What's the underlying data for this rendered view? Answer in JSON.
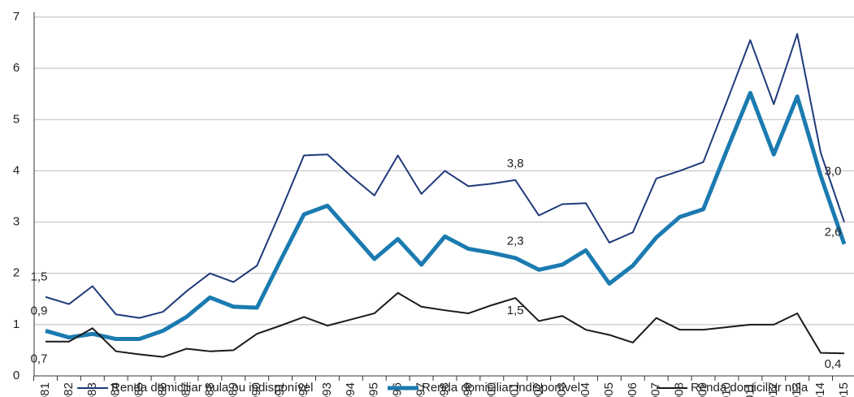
{
  "chart_data": {
    "type": "line",
    "categories": [
      "1981",
      "1982",
      "1983",
      "1984",
      "1985",
      "1986",
      "1987",
      "1988",
      "1989",
      "1990",
      "1991",
      "1992",
      "1993",
      "1994",
      "1995",
      "1996",
      "1997",
      "1998",
      "1999",
      "2000",
      "2001",
      "2002",
      "2003",
      "2004",
      "2005",
      "2006",
      "2007",
      "2008",
      "2009",
      "2010",
      "2011",
      "2012",
      "2013",
      "2014",
      "2015"
    ],
    "series": [
      {
        "name": "Renda domiciliar nula ou indisponível",
        "color": "#1f3a7a",
        "width": 2,
        "values": [
          1.54,
          1.4,
          1.75,
          1.2,
          1.13,
          1.25,
          1.65,
          2.0,
          1.83,
          2.15,
          3.2,
          4.3,
          4.32,
          3.9,
          3.52,
          4.3,
          3.55,
          4.0,
          3.7,
          3.75,
          3.82,
          3.13,
          3.35,
          3.37,
          2.6,
          2.8,
          3.85,
          4.0,
          4.17,
          5.35,
          6.55,
          5.3,
          6.67,
          4.35,
          3.0
        ],
        "value_labels": [
          "1,5",
          null,
          null,
          null,
          null,
          null,
          null,
          null,
          null,
          null,
          null,
          null,
          null,
          null,
          null,
          null,
          null,
          null,
          null,
          null,
          "3,8",
          null,
          null,
          null,
          null,
          null,
          null,
          null,
          null,
          null,
          null,
          null,
          null,
          null,
          "3,0"
        ]
      },
      {
        "name": "Renda domiciliar indisponível",
        "color": "#1b7bb0",
        "width": 5,
        "values": [
          0.88,
          0.75,
          0.82,
          0.72,
          0.72,
          0.88,
          1.15,
          1.53,
          1.35,
          1.33,
          2.25,
          3.15,
          3.32,
          2.8,
          2.28,
          2.67,
          2.17,
          2.72,
          2.48,
          2.4,
          2.3,
          2.07,
          2.17,
          2.45,
          1.8,
          2.15,
          2.7,
          3.1,
          3.25,
          4.4,
          5.52,
          4.32,
          5.45,
          3.9,
          2.57
        ],
        "value_labels": [
          "0,9",
          null,
          null,
          null,
          null,
          null,
          null,
          null,
          null,
          null,
          null,
          null,
          null,
          null,
          null,
          null,
          null,
          null,
          null,
          null,
          "2,3",
          null,
          null,
          null,
          null,
          null,
          null,
          null,
          null,
          null,
          null,
          null,
          null,
          null,
          "2,6"
        ]
      },
      {
        "name": "Renda domiciliar nula",
        "color": "#1a1a1a",
        "width": 2,
        "values": [
          0.67,
          0.67,
          0.93,
          0.48,
          0.42,
          0.37,
          0.53,
          0.48,
          0.5,
          0.82,
          0.98,
          1.15,
          0.98,
          1.1,
          1.22,
          1.62,
          1.35,
          1.28,
          1.22,
          1.38,
          1.52,
          1.07,
          1.17,
          0.9,
          0.8,
          0.65,
          1.13,
          0.9,
          0.9,
          0.95,
          1.0,
          1.0,
          1.22,
          0.45,
          0.44
        ],
        "value_labels": [
          "0,7",
          null,
          null,
          null,
          null,
          null,
          null,
          null,
          null,
          null,
          null,
          null,
          null,
          null,
          null,
          null,
          null,
          null,
          null,
          null,
          "1,5",
          null,
          null,
          null,
          null,
          null,
          null,
          null,
          null,
          null,
          null,
          null,
          null,
          null,
          "0,4"
        ]
      }
    ],
    "ylim": [
      0,
      7
    ],
    "yticks": [
      0,
      1,
      2,
      3,
      4,
      5,
      6,
      7
    ],
    "grid": true
  }
}
